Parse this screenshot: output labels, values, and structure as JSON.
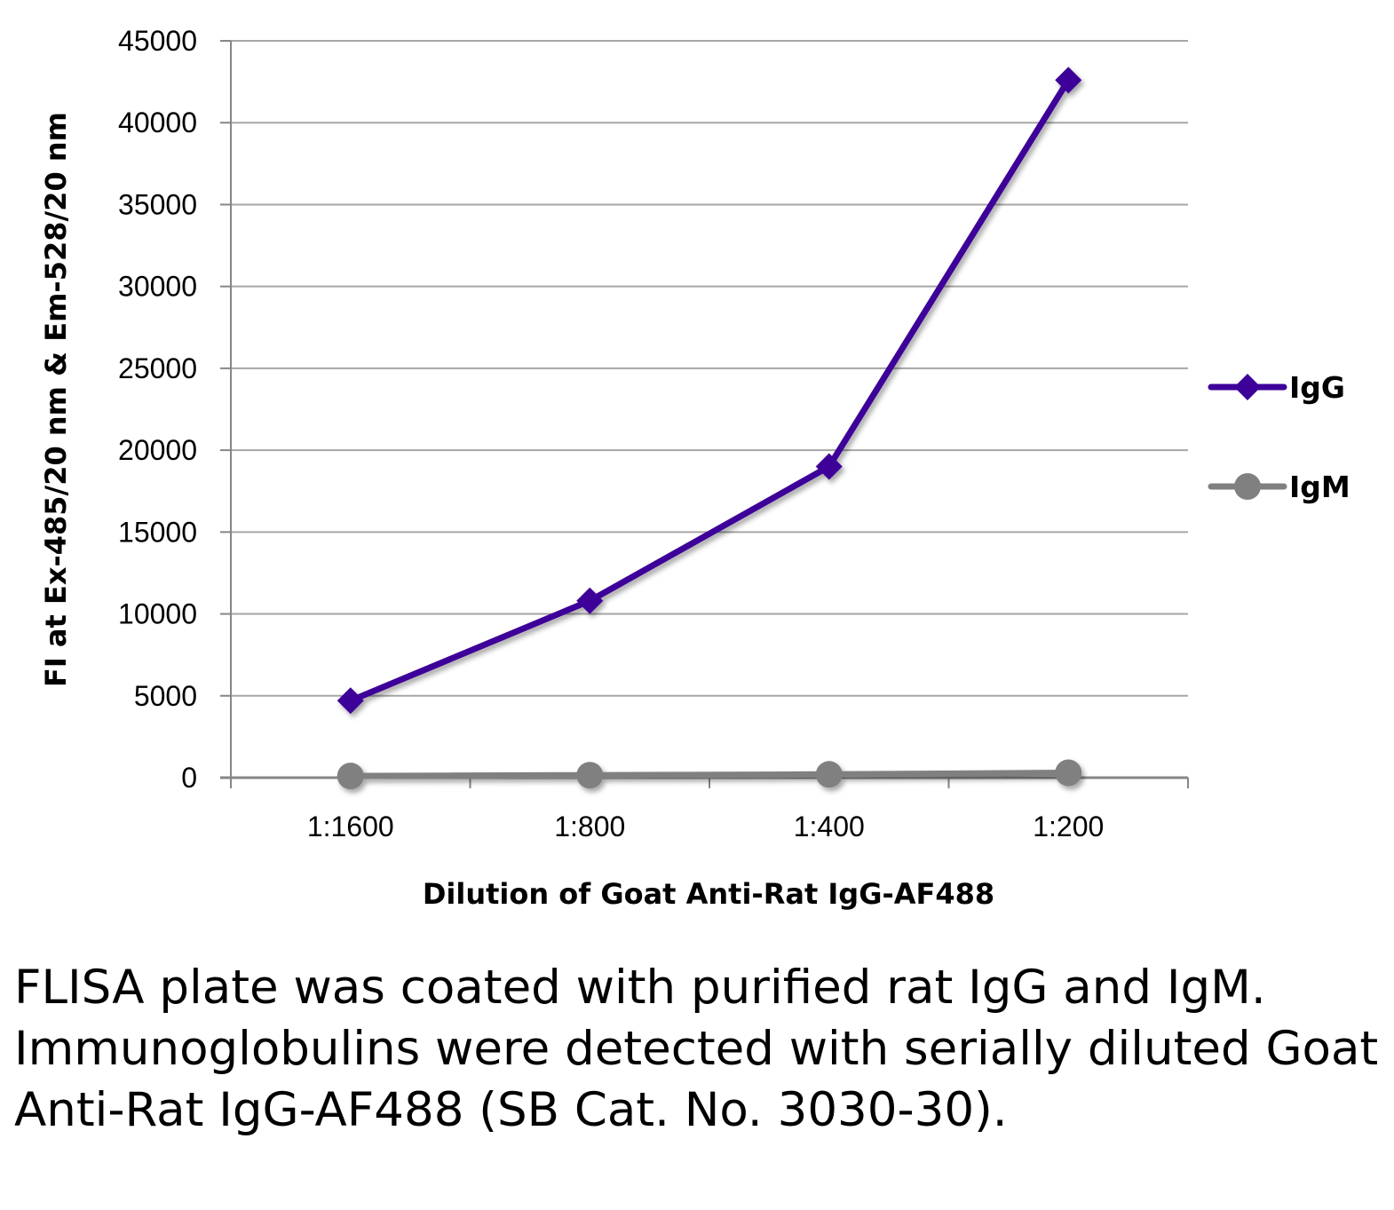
{
  "chart_data": {
    "type": "line",
    "categories": [
      "1:1600",
      "1:800",
      "1:400",
      "1:200"
    ],
    "series": [
      {
        "name": "IgG",
        "marker": "diamond",
        "color": "#3d0099",
        "values": [
          4700,
          10800,
          19000,
          42600
        ]
      },
      {
        "name": "IgM",
        "marker": "circle",
        "color": "#808080",
        "values": [
          100,
          150,
          200,
          300
        ]
      }
    ],
    "xlabel": "Dilution of Goat Anti-Rat IgG-AF488",
    "ylabel": "FI at Ex-485/20 nm & Em-528/20 nm",
    "ylim": [
      0,
      45000
    ],
    "yticks": [
      "0",
      "5000",
      "10000",
      "15000",
      "20000",
      "25000",
      "30000",
      "35000",
      "40000",
      "45000"
    ],
    "grid": true,
    "legend": "right"
  },
  "caption": "FLISA plate was coated with purified rat IgG and IgM.  Immunoglobulins were detected with serially diluted Goat Anti-Rat IgG-AF488 (SB Cat. No. 3030-30).",
  "colors": {
    "grid": "#a6a6a6",
    "axis": "#868686"
  }
}
